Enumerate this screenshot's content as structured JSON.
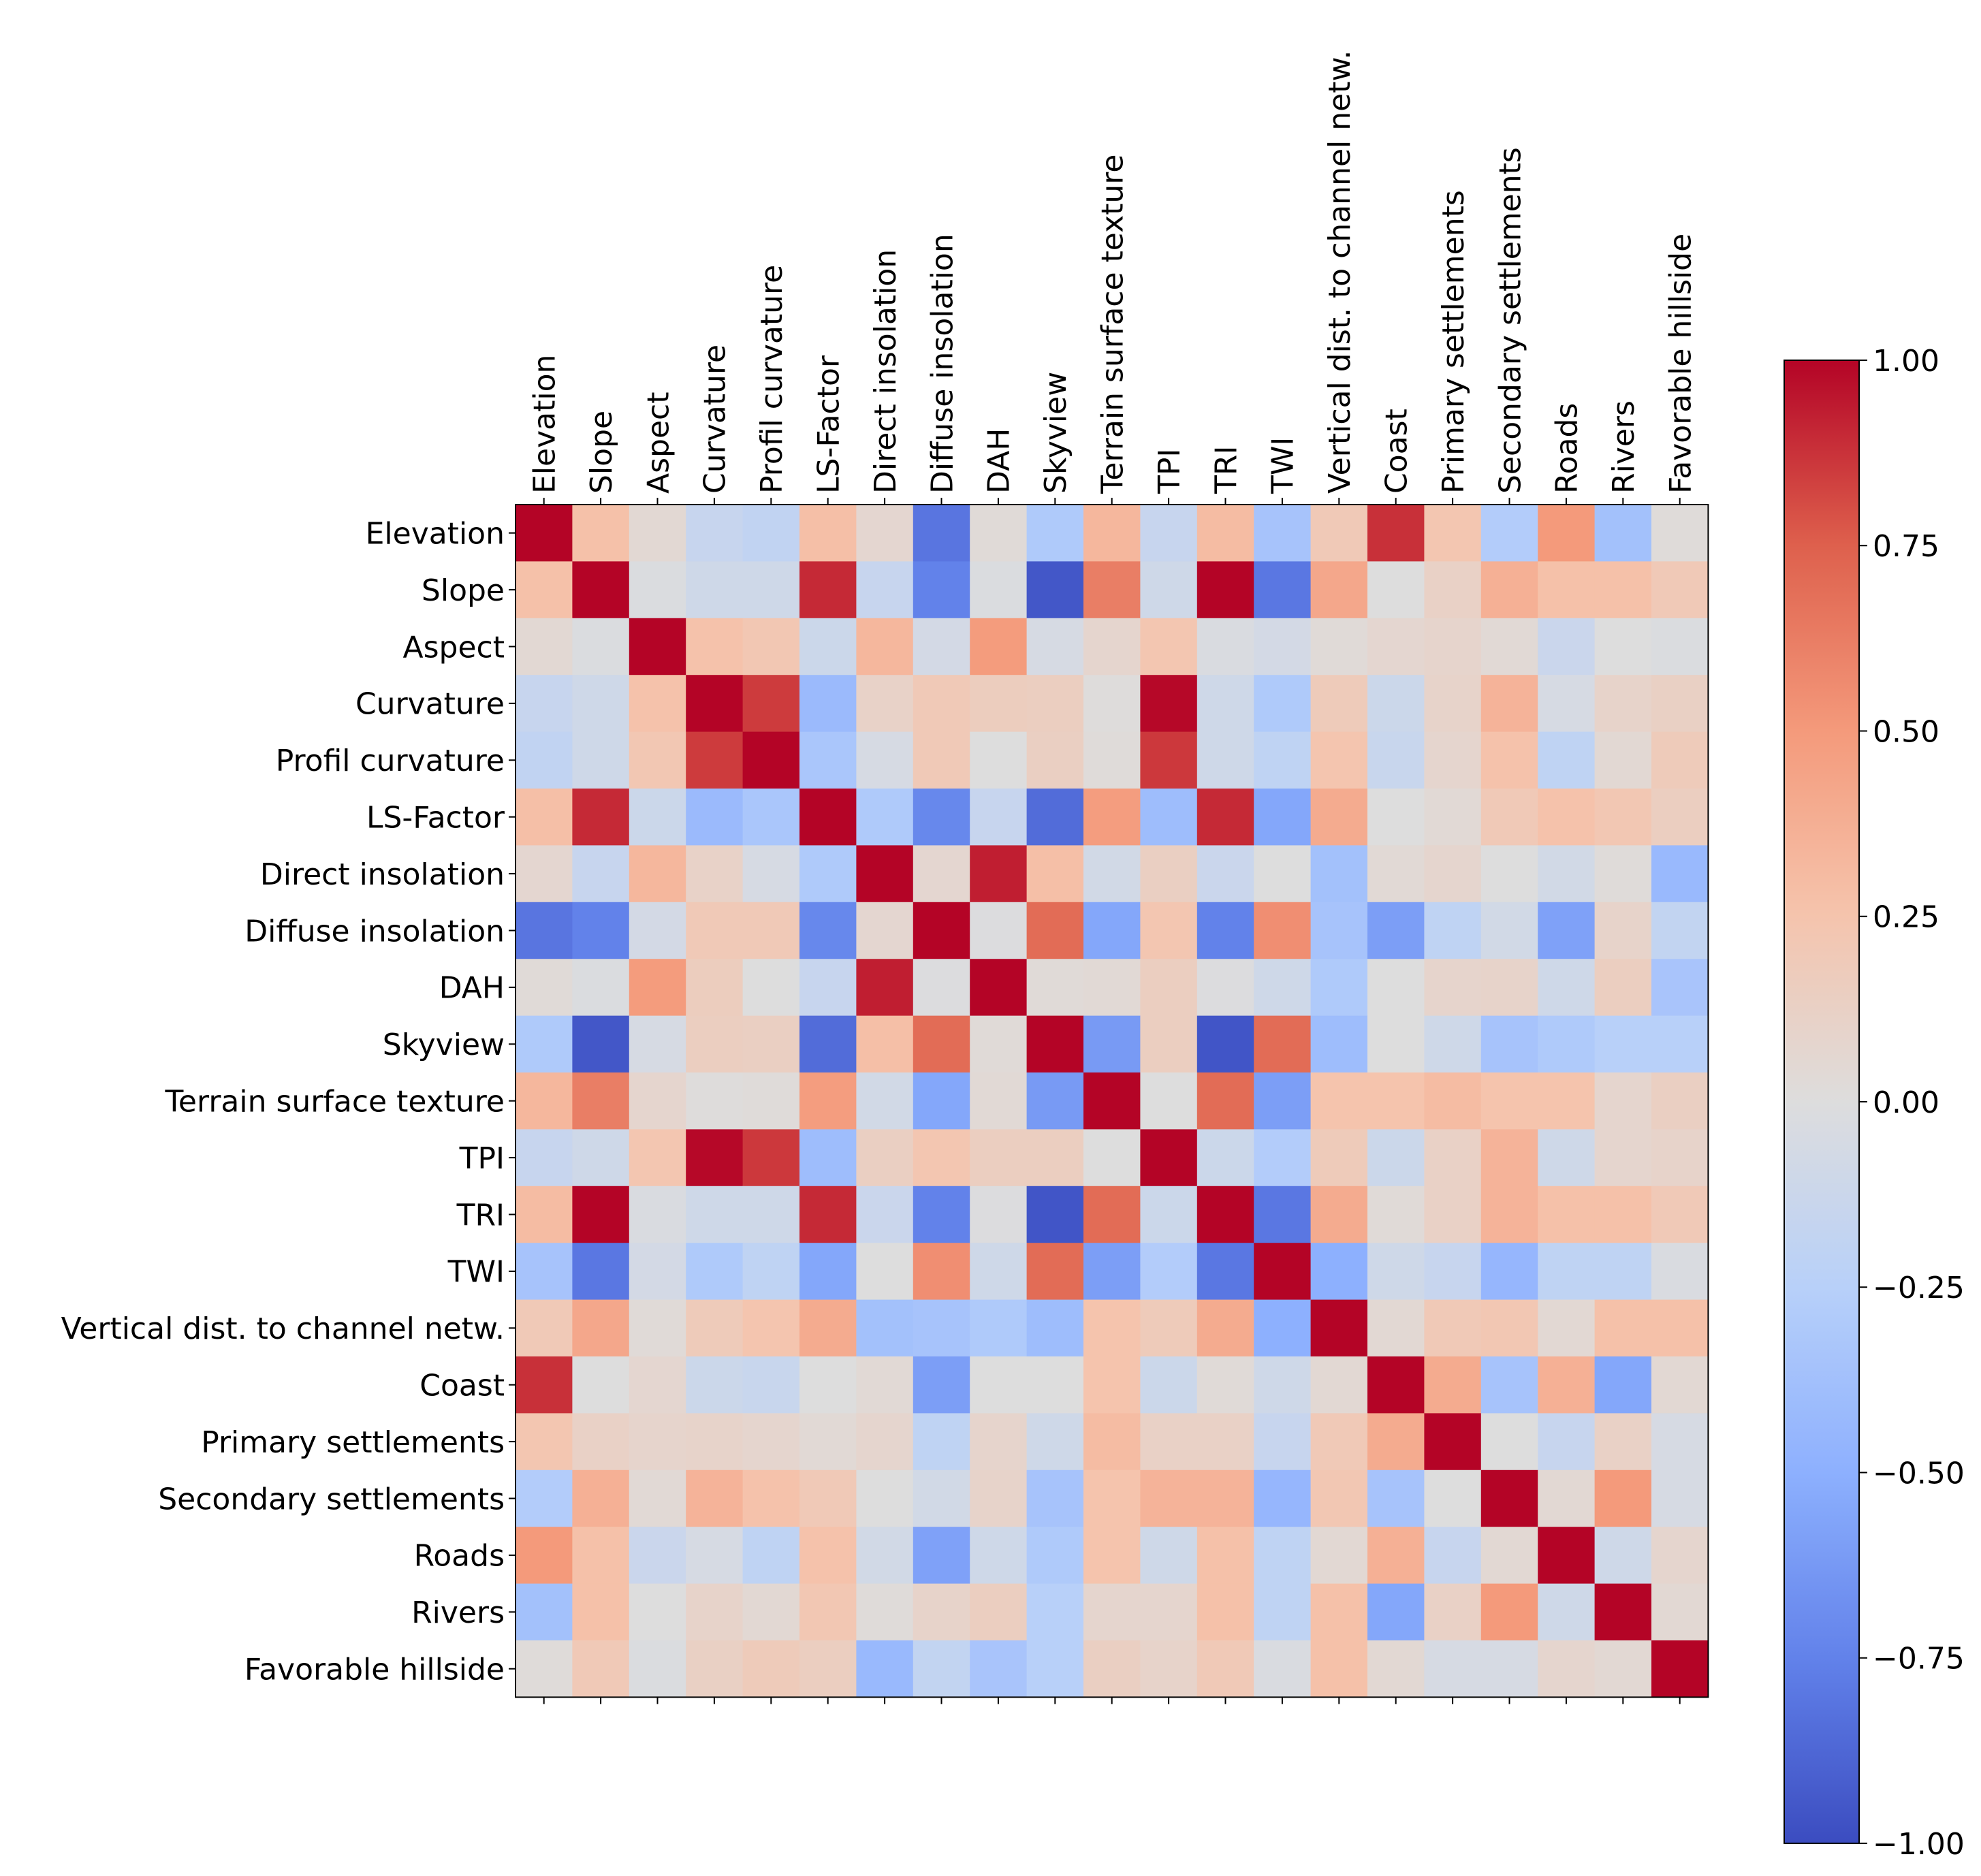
{
  "chart_data": {
    "type": "heatmap",
    "title": "",
    "labels": [
      "Elevation",
      "Slope",
      "Aspect",
      "Curvature",
      "Profil curvature",
      "LS-Factor",
      "Direct insolation",
      "Diffuse insolation",
      "DAH",
      "Skyview",
      "Terrain surface texture",
      "TPI",
      "TRI",
      "TWI",
      "Vertical dist. to channel netw.",
      "Coast",
      "Primary settlements",
      "Secondary settlements",
      "Roads",
      "Rivers",
      "Favorable hillside"
    ],
    "matrix": [
      [
        1.0,
        0.27,
        0.05,
        -0.15,
        -0.19,
        0.28,
        0.07,
        -0.81,
        0.03,
        -0.3,
        0.33,
        -0.15,
        0.3,
        -0.35,
        0.2,
        0.88,
        0.23,
        -0.28,
        0.5,
        -0.37,
        0.02
      ],
      [
        0.27,
        1.0,
        -0.02,
        -0.1,
        -0.1,
        0.9,
        -0.15,
        -0.75,
        -0.02,
        -0.95,
        0.62,
        -0.1,
        1.0,
        -0.8,
        0.42,
        0.0,
        0.12,
        0.37,
        0.27,
        0.27,
        0.2
      ],
      [
        0.05,
        -0.02,
        1.0,
        0.26,
        0.22,
        -0.12,
        0.33,
        -0.07,
        0.49,
        -0.05,
        0.08,
        0.23,
        -0.03,
        -0.07,
        0.03,
        0.07,
        0.09,
        0.04,
        -0.13,
        0.0,
        -0.02
      ],
      [
        -0.15,
        -0.1,
        0.26,
        1.0,
        0.85,
        -0.42,
        0.11,
        0.2,
        0.16,
        0.15,
        0.01,
        0.99,
        -0.1,
        -0.3,
        0.18,
        -0.12,
        0.1,
        0.35,
        -0.05,
        0.1,
        0.13
      ],
      [
        -0.19,
        -0.1,
        0.22,
        0.85,
        1.0,
        -0.33,
        -0.05,
        0.2,
        0.0,
        0.14,
        0.02,
        0.86,
        -0.1,
        -0.2,
        0.24,
        -0.14,
        0.08,
        0.26,
        -0.2,
        0.05,
        0.18
      ],
      [
        0.28,
        0.9,
        -0.12,
        -0.42,
        -0.33,
        1.0,
        -0.3,
        -0.72,
        -0.15,
        -0.85,
        0.48,
        -0.4,
        0.9,
        -0.55,
        0.4,
        0.0,
        0.04,
        0.2,
        0.26,
        0.22,
        0.15
      ],
      [
        0.07,
        -0.15,
        0.33,
        0.11,
        -0.05,
        -0.3,
        1.0,
        0.07,
        0.93,
        0.28,
        -0.08,
        0.14,
        -0.13,
        0.0,
        -0.37,
        0.04,
        0.08,
        0.0,
        -0.08,
        0.02,
        -0.43
      ],
      [
        -0.81,
        -0.75,
        -0.07,
        0.2,
        0.2,
        -0.72,
        0.07,
        1.0,
        -0.01,
        0.7,
        -0.55,
        0.23,
        -0.75,
        0.55,
        -0.35,
        -0.6,
        -0.2,
        -0.08,
        -0.58,
        0.1,
        -0.18
      ],
      [
        0.03,
        -0.02,
        0.49,
        0.16,
        0.0,
        -0.15,
        0.93,
        -0.01,
        1.0,
        0.03,
        0.04,
        0.15,
        -0.01,
        -0.1,
        -0.3,
        0.0,
        0.09,
        0.1,
        -0.1,
        0.15,
        -0.34
      ],
      [
        -0.3,
        -0.95,
        -0.05,
        0.15,
        0.14,
        -0.85,
        0.28,
        0.7,
        0.03,
        1.0,
        -0.62,
        0.15,
        -0.96,
        0.7,
        -0.4,
        0.0,
        -0.1,
        -0.35,
        -0.3,
        -0.25,
        -0.25
      ],
      [
        0.33,
        0.62,
        0.08,
        0.01,
        0.02,
        0.48,
        -0.08,
        -0.55,
        0.04,
        -0.62,
        1.0,
        0.0,
        0.7,
        -0.6,
        0.25,
        0.25,
        0.3,
        0.25,
        0.25,
        0.08,
        0.14
      ],
      [
        -0.15,
        -0.1,
        0.23,
        0.99,
        0.86,
        -0.4,
        0.14,
        0.23,
        0.15,
        0.15,
        0.0,
        1.0,
        -0.12,
        -0.28,
        0.18,
        -0.12,
        0.12,
        0.35,
        -0.1,
        0.08,
        0.1
      ],
      [
        0.3,
        1.0,
        -0.03,
        -0.1,
        -0.1,
        0.9,
        -0.13,
        -0.75,
        -0.01,
        -0.96,
        0.7,
        -0.12,
        1.0,
        -0.8,
        0.4,
        0.03,
        0.12,
        0.35,
        0.27,
        0.27,
        0.2
      ],
      [
        -0.35,
        -0.8,
        -0.07,
        -0.3,
        -0.2,
        -0.55,
        0.0,
        0.55,
        -0.1,
        0.7,
        -0.6,
        -0.28,
        -0.8,
        1.0,
        -0.5,
        -0.1,
        -0.15,
        -0.45,
        -0.2,
        -0.2,
        -0.03
      ],
      [
        0.2,
        0.42,
        0.03,
        0.18,
        0.24,
        0.4,
        -0.37,
        -0.35,
        -0.3,
        -0.4,
        0.25,
        0.18,
        0.4,
        -0.5,
        1.0,
        0.05,
        0.2,
        0.22,
        0.05,
        0.27,
        0.27
      ],
      [
        0.88,
        0.0,
        0.07,
        -0.12,
        -0.14,
        0.0,
        0.04,
        -0.6,
        0.0,
        0.0,
        0.25,
        -0.12,
        0.03,
        -0.1,
        0.05,
        1.0,
        0.4,
        -0.35,
        0.37,
        -0.55,
        0.05
      ],
      [
        0.23,
        0.12,
        0.09,
        0.1,
        0.08,
        0.04,
        0.08,
        -0.2,
        0.09,
        -0.1,
        0.3,
        0.12,
        0.12,
        -0.15,
        0.2,
        0.4,
        1.0,
        0.0,
        -0.15,
        0.12,
        -0.05
      ],
      [
        -0.28,
        0.37,
        0.04,
        0.35,
        0.26,
        0.2,
        0.0,
        -0.08,
        0.1,
        -0.35,
        0.25,
        0.35,
        0.35,
        -0.45,
        0.22,
        -0.35,
        0.0,
        1.0,
        0.05,
        0.5,
        -0.05
      ],
      [
        0.5,
        0.27,
        -0.13,
        -0.05,
        -0.2,
        0.26,
        -0.08,
        -0.58,
        -0.1,
        -0.3,
        0.25,
        -0.1,
        0.27,
        -0.2,
        0.05,
        0.37,
        -0.15,
        0.05,
        1.0,
        -0.1,
        0.08
      ],
      [
        -0.37,
        0.27,
        0.0,
        0.1,
        0.05,
        0.22,
        0.02,
        0.1,
        0.15,
        -0.25,
        0.08,
        0.08,
        0.27,
        -0.2,
        0.27,
        -0.55,
        0.12,
        0.5,
        -0.1,
        1.0,
        0.05
      ],
      [
        0.02,
        0.2,
        -0.02,
        0.13,
        0.18,
        0.15,
        -0.43,
        -0.18,
        -0.34,
        -0.25,
        0.14,
        0.1,
        0.2,
        -0.03,
        0.27,
        0.05,
        -0.05,
        -0.05,
        0.08,
        0.05,
        1.0
      ]
    ],
    "colorbar": {
      "min": -1.0,
      "max": 1.0,
      "ticks": [
        1.0,
        0.75,
        0.5,
        0.25,
        0.0,
        -0.25,
        -0.5,
        -0.75,
        -1.0
      ],
      "tick_labels": [
        "1.00",
        "0.75",
        "0.50",
        "0.25",
        "0.00",
        "−0.25",
        "−0.50",
        "−0.75",
        "−1.00"
      ],
      "colormap": "coolwarm",
      "colors": [
        "#3b4cc0",
        "#dddddd",
        "#b40426"
      ]
    }
  }
}
